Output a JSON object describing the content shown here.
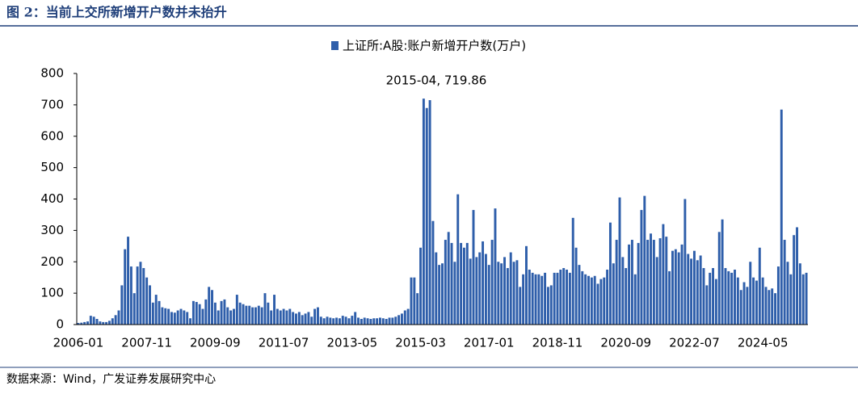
{
  "chart_data": {
    "type": "bar",
    "title": "图 2：当前上交所新增开户数并未抬升",
    "source": "数据来源：Wind，广发证券发展研究中心",
    "annotation": "2015-04, 719.86",
    "series": [
      {
        "name": "上证所:A股:账户新增开户数(万户)",
        "color": "#2e5eaa",
        "values": [
          5,
          6,
          8,
          10,
          28,
          25,
          18,
          10,
          8,
          8,
          12,
          20,
          30,
          45,
          125,
          240,
          280,
          185,
          100,
          185,
          200,
          180,
          150,
          125,
          70,
          95,
          75,
          55,
          52,
          50,
          40,
          38,
          45,
          50,
          45,
          40,
          20,
          75,
          72,
          65,
          50,
          80,
          120,
          110,
          70,
          45,
          75,
          80,
          55,
          45,
          50,
          95,
          70,
          65,
          60,
          60,
          55,
          55,
          60,
          55,
          100,
          70,
          45,
          95,
          50,
          45,
          50,
          45,
          50,
          40,
          35,
          40,
          30,
          35,
          40,
          25,
          50,
          55,
          25,
          20,
          25,
          22,
          20,
          22,
          20,
          28,
          25,
          20,
          28,
          40,
          22,
          18,
          22,
          20,
          18,
          20,
          20,
          22,
          20,
          18,
          22,
          22,
          25,
          30,
          35,
          45,
          50,
          150,
          150,
          100,
          245,
          719.86,
          690,
          715,
          330,
          230,
          190,
          195,
          270,
          295,
          260,
          200,
          415,
          260,
          245,
          260,
          210,
          365,
          215,
          230,
          265,
          225,
          190,
          270,
          370,
          200,
          195,
          215,
          180,
          230,
          200,
          205,
          120,
          160,
          250,
          175,
          165,
          160,
          160,
          155,
          165,
          120,
          125,
          165,
          165,
          175,
          180,
          175,
          165,
          340,
          245,
          190,
          170,
          160,
          155,
          150,
          155,
          130,
          145,
          150,
          175,
          325,
          195,
          270,
          405,
          215,
          180,
          255,
          270,
          160,
          260,
          365,
          410,
          270,
          290,
          270,
          215,
          275,
          320,
          280,
          170,
          235,
          240,
          230,
          255,
          400,
          225,
          210,
          235,
          205,
          220,
          180,
          125,
          165,
          180,
          145,
          295,
          335,
          180,
          170,
          165,
          175,
          150,
          110,
          135,
          120,
          200,
          150,
          140,
          245,
          150,
          120,
          110,
          115,
          100,
          185,
          685,
          270,
          200,
          160,
          285,
          310,
          195,
          160,
          165
        ]
      }
    ],
    "categories": [
      "2006-01",
      null,
      null,
      null,
      null,
      null,
      null,
      null,
      null,
      null,
      null,
      null,
      null,
      null,
      null,
      null,
      null,
      null,
      null,
      null,
      null,
      null,
      "2007-11",
      null,
      null,
      null,
      null,
      null,
      null,
      null,
      null,
      null,
      null,
      null,
      null,
      null,
      null,
      null,
      null,
      null,
      null,
      null,
      null,
      null,
      "2009-09",
      null,
      null,
      null,
      null,
      null,
      null,
      null,
      null,
      null,
      null,
      null,
      null,
      null,
      null,
      null,
      null,
      null,
      null,
      null,
      null,
      null,
      "2011-07",
      null,
      null,
      null,
      null,
      null,
      null,
      null,
      null,
      null,
      null,
      null,
      null,
      null,
      null,
      null,
      null,
      null,
      null,
      null,
      null,
      null,
      "2013-05",
      null,
      null,
      null,
      null,
      null,
      null,
      null,
      null,
      null,
      null,
      null,
      null,
      null,
      null,
      null,
      null,
      null,
      null,
      null,
      null,
      null,
      "2015-03",
      null,
      null,
      null,
      null,
      null,
      null,
      null,
      null,
      null,
      null,
      null,
      null,
      null,
      null,
      null,
      null,
      null,
      null,
      null,
      null,
      null,
      "2017-01",
      null,
      null,
      null,
      null,
      null,
      null,
      null,
      null,
      null,
      null,
      null,
      null,
      null,
      null,
      null,
      null,
      null,
      null,
      null,
      null,
      null,
      "2018-11",
      null,
      null,
      null,
      null,
      null,
      null,
      null,
      null,
      null,
      null,
      null,
      null,
      null,
      null,
      null,
      null,
      null,
      null,
      null,
      null,
      null,
      "2020-09",
      null,
      null,
      null,
      null,
      null,
      null,
      null,
      null,
      null,
      null,
      null,
      null,
      null,
      null,
      null,
      null,
      null,
      null,
      null,
      null,
      null,
      "2022-07",
      null,
      null,
      null,
      null,
      null,
      null,
      null,
      null,
      null,
      null,
      null,
      null,
      null,
      null,
      null,
      null,
      null,
      null,
      null,
      null,
      null,
      "2024-05",
      null,
      null,
      null,
      null,
      null,
      null,
      null,
      null,
      null,
      null,
      null,
      null,
      null,
      null
    ],
    "ylim": [
      0,
      800
    ],
    "yticks": [
      0,
      100,
      200,
      300,
      400,
      500,
      600,
      700,
      800
    ],
    "grid": false
  }
}
